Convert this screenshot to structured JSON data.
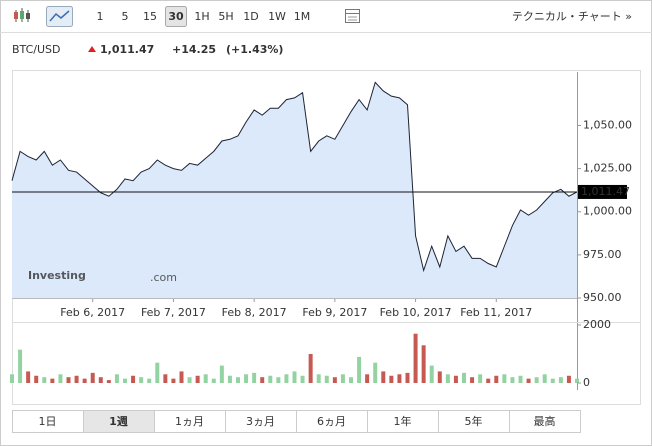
{
  "toolbar": {
    "intervals": [
      "1",
      "5",
      "15",
      "30",
      "1H",
      "5H",
      "1D",
      "1W",
      "1M"
    ],
    "selected_interval": 3,
    "link": "テクニカル・チャート »"
  },
  "header": {
    "symbol": "BTC/USD",
    "price": "1,011.47",
    "change": "+14.25",
    "change_percent": "(+1.43%)"
  },
  "watermark": {
    "brand": "Investing",
    "suffix": ".com"
  },
  "chart_data": {
    "type": "area",
    "color": "#1d2434",
    "fill": "#dbe9fb",
    "values": [
      1018,
      1035,
      1032,
      1030,
      1035,
      1027,
      1030,
      1024,
      1023,
      1019,
      1015,
      1011,
      1009,
      1013,
      1019,
      1018,
      1023,
      1025,
      1030,
      1027,
      1025,
      1024,
      1028,
      1027,
      1031,
      1035,
      1041,
      1042,
      1044,
      1052,
      1059,
      1056,
      1060,
      1060,
      1065,
      1066,
      1069,
      1035,
      1041,
      1044,
      1042,
      1050,
      1058,
      1065,
      1059,
      1075,
      1070,
      1067,
      1066,
      1062,
      986,
      966,
      980,
      968,
      986,
      977,
      980,
      973,
      973,
      970,
      968,
      980,
      992,
      1001,
      998,
      1001,
      1006,
      1011,
      1013,
      1009,
      1011.47
    ],
    "xlim": [
      0,
      70
    ],
    "xticks": [
      {
        "value": 10,
        "label": "Feb 6, 2017"
      },
      {
        "value": 20,
        "label": "Feb 7, 2017"
      },
      {
        "value": 30,
        "label": "Feb 8, 2017"
      },
      {
        "value": 40,
        "label": "Feb 9, 2017"
      },
      {
        "value": 50,
        "label": "Feb 10, 2017"
      },
      {
        "value": 60,
        "label": "Feb 11, 2017"
      }
    ],
    "ylim": [
      950,
      1081
    ],
    "yticks": [
      {
        "value": 950,
        "label": "950.00"
      },
      {
        "value": 975,
        "label": "975.00"
      },
      {
        "value": 1000,
        "label": "1,000.00"
      },
      {
        "value": 1025,
        "label": "1,025.00"
      },
      {
        "value": 1050,
        "label": "1,050.00"
      }
    ],
    "current": {
      "value": 1011.47,
      "label": "1,011.47"
    },
    "volume": {
      "values": [
        300,
        1150,
        400,
        250,
        200,
        150,
        300,
        200,
        250,
        150,
        350,
        200,
        100,
        300,
        150,
        250,
        200,
        150,
        700,
        300,
        150,
        400,
        200,
        250,
        300,
        150,
        600,
        250,
        200,
        300,
        350,
        200,
        250,
        200,
        300,
        400,
        250,
        1000,
        300,
        250,
        200,
        300,
        200,
        900,
        300,
        700,
        400,
        250,
        300,
        350,
        1700,
        1300,
        600,
        400,
        300,
        250,
        350,
        200,
        300,
        150,
        250,
        300,
        200,
        250,
        150,
        200,
        300,
        150,
        200,
        250,
        150
      ],
      "ylim": [
        0,
        2000
      ],
      "yticks": [
        0,
        2000
      ],
      "up_color": "#93d3a2",
      "down_color": "#c65a52"
    }
  },
  "ranges": {
    "labels": [
      "1日",
      "1週",
      "1ヵ月",
      "3ヵ月",
      "6ヵ月",
      "1年",
      "5年",
      "最高"
    ],
    "selected": 1
  }
}
